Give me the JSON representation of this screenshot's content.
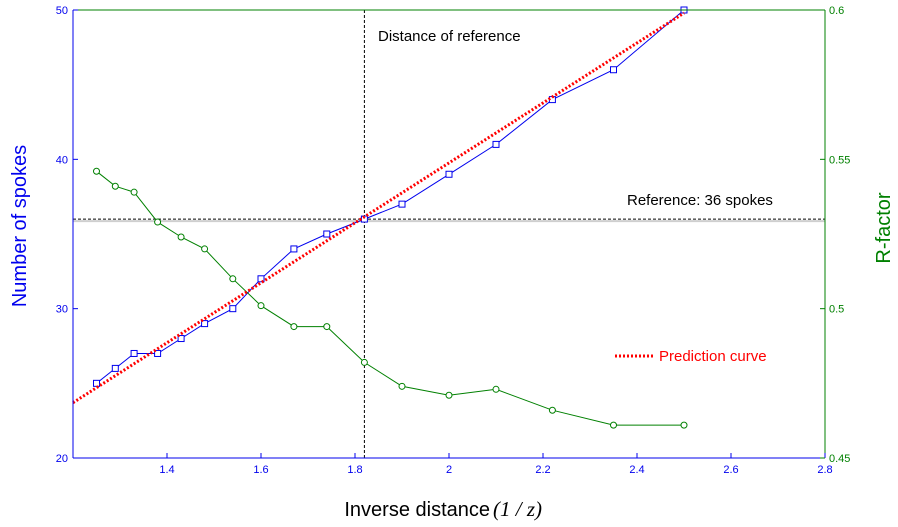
{
  "chart_data": {
    "type": "line",
    "title": "",
    "xlabel": "Inverse distance",
    "xlabel_math": "(1 / z)",
    "ylabel": "Number of spokes",
    "ylabel2": "R-factor",
    "xlim": [
      1.2,
      2.8
    ],
    "ylim": [
      20,
      50
    ],
    "ylim2": [
      0.45,
      0.6
    ],
    "x_ticks": [
      "1.4",
      "1.6",
      "1.8",
      "2",
      "2.2",
      "2.4",
      "2.6",
      "2.8"
    ],
    "y_ticks": [
      "20",
      "30",
      "40",
      "50"
    ],
    "y2_ticks": [
      "0.45",
      "0.5",
      "0.55",
      "0.6"
    ],
    "grid": false,
    "series": [
      {
        "axis": "left",
        "color": "#0000ee",
        "marker": "square",
        "x": [
          1.25,
          1.29,
          1.33,
          1.38,
          1.43,
          1.48,
          1.54,
          1.6,
          1.67,
          1.74,
          1.82,
          1.9,
          2.0,
          2.1,
          2.22,
          2.35,
          2.5
        ],
        "values": [
          25,
          26,
          27,
          27,
          28,
          29,
          30,
          32,
          34,
          35,
          36,
          37,
          39,
          41,
          44,
          46,
          50
        ]
      },
      {
        "axis": "right",
        "color": "#008000",
        "marker": "circle",
        "x": [
          1.25,
          1.29,
          1.33,
          1.38,
          1.43,
          1.48,
          1.54,
          1.6,
          1.67,
          1.74,
          1.82,
          1.9,
          2.0,
          2.1,
          2.22,
          2.35,
          2.5
        ],
        "values": [
          0.546,
          0.541,
          0.539,
          0.529,
          0.524,
          0.52,
          0.51,
          0.501,
          0.494,
          0.494,
          0.482,
          0.474,
          0.471,
          0.473,
          0.466,
          0.461,
          0.461
        ]
      },
      {
        "name": "Prediction curve",
        "axis": "left",
        "color": "#ff0000",
        "style": "dotted",
        "x": [
          1.2,
          2.5
        ],
        "values": [
          23.7,
          49.8
        ]
      }
    ],
    "reference_x": 1.82,
    "reference_y": 36,
    "annotations": {
      "vertical": "Distance of reference",
      "horizontal": "Reference: 36 spokes"
    },
    "legend_position": "right-middle",
    "colors": {
      "left_axis": "#0000ee",
      "right_axis": "#008000",
      "prediction": "#ff0000"
    }
  }
}
